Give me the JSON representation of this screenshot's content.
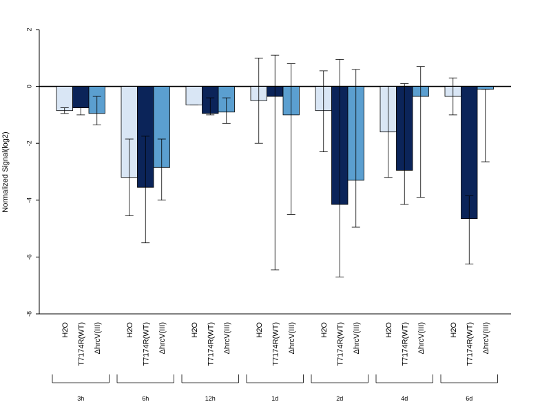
{
  "chart_data": {
    "type": "bar",
    "title": "",
    "xlabel": "",
    "ylabel": "Normalized Signal(log2)",
    "ylim": [
      -8,
      2
    ],
    "yticks": [
      2,
      0,
      -2,
      -4,
      -6,
      -8
    ],
    "grid": false,
    "legend": "none",
    "categories": [
      "3h",
      "6h",
      "12h",
      "1d",
      "2d",
      "4d",
      "6d"
    ],
    "series": [
      {
        "name": "H2O",
        "color": "#d9e6f5",
        "values": [
          -0.85,
          -3.2,
          -0.65,
          -0.5,
          -0.85,
          -1.6,
          -0.35
        ],
        "err_low": [
          -0.95,
          -4.55,
          -0.65,
          -2.0,
          -2.3,
          -3.2,
          -1.0
        ],
        "err_high": [
          -0.75,
          -1.85,
          -0.65,
          1.0,
          0.55,
          0.0,
          0.3
        ]
      },
      {
        "name": "T7174R(WT)",
        "color": "#0b2459",
        "values": [
          -0.75,
          -3.55,
          -0.95,
          -0.35,
          -4.15,
          -2.95,
          -4.65
        ],
        "err_low": [
          -1.0,
          -5.5,
          -1.0,
          -6.45,
          -6.7,
          -4.15,
          -6.25
        ],
        "err_high": [
          -0.75,
          -1.75,
          -0.4,
          1.1,
          0.95,
          0.1,
          -3.85
        ]
      },
      {
        "name": "ΔhrcV(III)",
        "color": "#5b9fd0",
        "values": [
          -0.95,
          -2.85,
          -0.9,
          -1.0,
          -3.3,
          -0.35,
          -0.1
        ],
        "err_low": [
          -1.35,
          -4.0,
          -1.3,
          -4.5,
          -4.95,
          -3.9,
          -2.65
        ],
        "err_high": [
          -0.35,
          -1.85,
          -0.4,
          0.8,
          0.6,
          0.7,
          -0.1
        ]
      }
    ]
  }
}
